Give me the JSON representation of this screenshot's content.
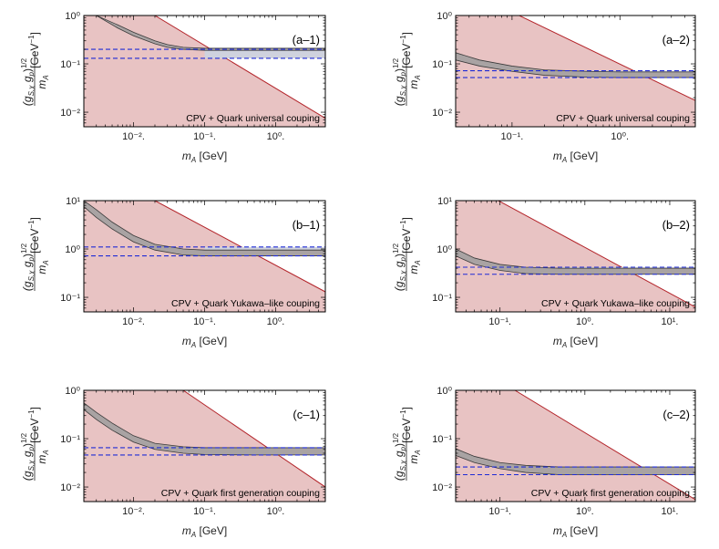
{
  "colors": {
    "excluded_fill": "#e8c3c3",
    "excluded_line": "#b3242a",
    "band_fill": "#cfd2de",
    "band_dash": "#1f2bd6",
    "curve_fill": "#a9a3a3",
    "curve_line": "#3a3a3a"
  },
  "axis_text": {
    "xlabel_m": "m",
    "xlabel_sub": "A",
    "xlabel_unit": "[GeV]",
    "y_unit": "[GeV",
    "y_unit_exp": "−1",
    "y_unit_close": "]",
    "y_num_g": "(g",
    "y_num_sub1": "S,χ",
    "y_num_gp": "g",
    "y_num_sub2": "p",
    "y_num_close": ")",
    "y_num_exp": "1/2",
    "y_den_m": "m",
    "y_den_sub": "A"
  },
  "chart_data": [
    {
      "id": "a-1",
      "panel_label": "(a–1)",
      "type": "area",
      "caption": "CPV + Quark universal couping",
      "xscale": "log",
      "yscale": "log",
      "xlim": [
        0.002,
        5
      ],
      "ylim": [
        0.005,
        1
      ],
      "xticks": [
        0.01,
        0.1,
        1
      ],
      "xtick_labels": [
        "10⁻².",
        "10⁻¹.",
        "10⁰."
      ],
      "yticks": [
        0.01,
        0.1,
        1
      ],
      "ytick_labels": [
        "10⁻²",
        "10⁻¹",
        "10⁰"
      ],
      "show_xlabel": true,
      "excluded_region": {
        "line_x": [
          0.02,
          5
        ],
        "line_y": [
          1,
          0.0075
        ]
      },
      "grey_band": {
        "x": [
          0.003,
          0.006,
          0.01,
          0.02,
          0.03,
          0.05,
          0.1,
          0.2,
          0.5,
          1,
          5
        ],
        "lower": [
          1.0,
          0.55,
          0.38,
          0.26,
          0.22,
          0.2,
          0.19,
          0.19,
          0.19,
          0.19,
          0.19
        ],
        "upper": [
          1.0,
          0.64,
          0.45,
          0.3,
          0.25,
          0.22,
          0.21,
          0.21,
          0.21,
          0.21,
          0.21
        ]
      },
      "blue_band": {
        "lower": 0.13,
        "upper": 0.2,
        "x_start": 0.1
      }
    },
    {
      "id": "a-2",
      "panel_label": "(a–2)",
      "type": "area",
      "caption": "CPV + Quark universal couping",
      "xscale": "log",
      "yscale": "log",
      "xlim": [
        0.03,
        5
      ],
      "ylim": [
        0.005,
        1
      ],
      "xticks": [
        0.1,
        1
      ],
      "xtick_labels": [
        "10⁻¹.",
        "10⁰."
      ],
      "yticks": [
        0.01,
        0.1,
        1
      ],
      "ytick_labels": [
        "10⁻²",
        "10⁻¹",
        "10⁰"
      ],
      "show_xlabel": true,
      "excluded_region": {
        "line_x": [
          0.03,
          5
        ],
        "line_y": [
          4.3,
          0.0175
        ]
      },
      "grey_band": {
        "x": [
          0.03,
          0.05,
          0.1,
          0.2,
          0.5,
          1,
          2,
          5
        ],
        "lower": [
          0.12,
          0.09,
          0.07,
          0.058,
          0.053,
          0.052,
          0.052,
          0.052
        ],
        "upper": [
          0.17,
          0.12,
          0.09,
          0.075,
          0.07,
          0.068,
          0.068,
          0.068
        ]
      },
      "blue_band": {
        "lower": 0.052,
        "upper": 0.072,
        "x_start": 0.3
      }
    },
    {
      "id": "b-1",
      "panel_label": "(b–1)",
      "type": "area",
      "caption": "CPV + Quark Yukawa–like couping",
      "xscale": "log",
      "yscale": "log",
      "xlim": [
        0.002,
        5
      ],
      "ylim": [
        0.05,
        10
      ],
      "xticks": [
        0.01,
        0.1,
        1
      ],
      "xtick_labels": [
        "10⁻².",
        "10⁻¹.",
        "10⁰."
      ],
      "yticks": [
        0.1,
        1,
        10
      ],
      "ytick_labels": [
        "10⁻¹",
        "10⁰",
        "10¹"
      ],
      "show_xlabel": true,
      "excluded_region": {
        "line_x": [
          0.02,
          5
        ],
        "line_y": [
          10,
          0.13
        ]
      },
      "grey_band": {
        "x": [
          0.002,
          0.003,
          0.005,
          0.01,
          0.02,
          0.05,
          0.1,
          0.5,
          5
        ],
        "lower": [
          7.5,
          4.5,
          2.6,
          1.4,
          0.95,
          0.75,
          0.72,
          0.72,
          0.72
        ],
        "upper": [
          10,
          6.5,
          3.6,
          1.9,
          1.25,
          1.0,
          0.95,
          0.95,
          0.95
        ]
      },
      "blue_band": {
        "lower": 0.72,
        "upper": 1.1,
        "x_start": 0.1
      }
    },
    {
      "id": "b-2",
      "panel_label": "(b–2)",
      "type": "area",
      "caption": "CPV + Quark Yukawa–like couping",
      "xscale": "log",
      "yscale": "log",
      "xlim": [
        0.03,
        20
      ],
      "ylim": [
        0.05,
        10
      ],
      "xticks": [
        0.1,
        1,
        10
      ],
      "xtick_labels": [
        "10⁻¹.",
        "10⁰.",
        "10¹."
      ],
      "yticks": [
        0.1,
        1,
        10
      ],
      "ytick_labels": [
        "10⁻¹",
        "10⁰",
        "10¹"
      ],
      "show_xlabel": true,
      "excluded_region": {
        "line_x": [
          0.03,
          20
        ],
        "line_y": [
          30,
          0.063
        ]
      },
      "grey_band": {
        "x": [
          0.03,
          0.05,
          0.1,
          0.2,
          0.5,
          1,
          5,
          20
        ],
        "lower": [
          0.72,
          0.48,
          0.36,
          0.31,
          0.3,
          0.3,
          0.3,
          0.3
        ],
        "upper": [
          1.0,
          0.65,
          0.48,
          0.42,
          0.4,
          0.4,
          0.4,
          0.4
        ]
      },
      "blue_band": {
        "lower": 0.3,
        "upper": 0.42,
        "x_start": 0.5
      }
    },
    {
      "id": "c-1",
      "panel_label": "(c–1)",
      "type": "area",
      "caption": "CPV + Quark first generation couping",
      "xscale": "log",
      "yscale": "log",
      "xlim": [
        0.002,
        5
      ],
      "ylim": [
        0.005,
        1
      ],
      "xticks": [
        0.01,
        0.1,
        1
      ],
      "xtick_labels": [
        "10⁻².",
        "10⁻¹.",
        "10⁰."
      ],
      "yticks": [
        0.01,
        0.1,
        1
      ],
      "ytick_labels": [
        "10⁻²",
        "10⁻¹",
        "10⁰"
      ],
      "show_xlabel": true,
      "excluded_region": {
        "line_x": [
          0.05,
          5
        ],
        "line_y": [
          1,
          0.01
        ]
      },
      "grey_band": {
        "x": [
          0.002,
          0.003,
          0.005,
          0.01,
          0.02,
          0.05,
          0.1,
          0.5,
          5
        ],
        "lower": [
          0.4,
          0.25,
          0.15,
          0.085,
          0.06,
          0.05,
          0.047,
          0.046,
          0.046
        ],
        "upper": [
          0.55,
          0.35,
          0.21,
          0.115,
          0.08,
          0.068,
          0.065,
          0.065,
          0.065
        ]
      },
      "blue_band": {
        "lower": 0.046,
        "upper": 0.065,
        "x_start": 0.1
      }
    },
    {
      "id": "c-2",
      "panel_label": "(c–2)",
      "type": "area",
      "caption": "CPV + Quark first generation couping",
      "xscale": "log",
      "yscale": "log",
      "xlim": [
        0.03,
        20
      ],
      "ylim": [
        0.005,
        1
      ],
      "xticks": [
        0.1,
        1,
        10
      ],
      "xtick_labels": [
        "10⁻¹.",
        "10⁰.",
        "10¹."
      ],
      "yticks": [
        0.01,
        0.1,
        1
      ],
      "ytick_labels": [
        "10⁻²",
        "10⁻¹",
        "10⁰"
      ],
      "show_xlabel": true,
      "excluded_region": {
        "line_x": [
          0.15,
          20
        ],
        "line_y": [
          1,
          0.0055
        ]
      },
      "grey_band": {
        "x": [
          0.03,
          0.05,
          0.1,
          0.2,
          0.5,
          1,
          5,
          20
        ],
        "lower": [
          0.045,
          0.032,
          0.024,
          0.02,
          0.018,
          0.018,
          0.018,
          0.018
        ],
        "upper": [
          0.062,
          0.043,
          0.032,
          0.028,
          0.026,
          0.026,
          0.026,
          0.026
        ]
      },
      "blue_band": {
        "lower": 0.018,
        "upper": 0.026,
        "x_start": 0.3
      }
    }
  ]
}
